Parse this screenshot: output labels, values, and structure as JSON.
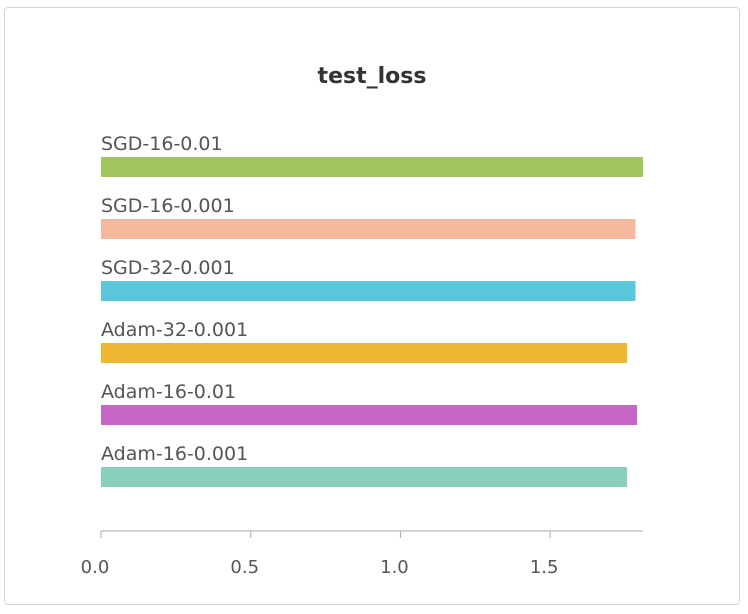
{
  "chart_data": {
    "type": "bar",
    "orientation": "horizontal",
    "title": "test_loss",
    "xlabel": "",
    "ylabel": "",
    "categories": [
      "SGD-16-0.01",
      "SGD-16-0.001",
      "SGD-32-0.001",
      "Adam-32-0.001",
      "Adam-16-0.01",
      "Adam-16-0.001"
    ],
    "values": [
      1.81,
      1.785,
      1.785,
      1.757,
      1.79,
      1.757
    ],
    "colors": [
      "#a3c55d",
      "#f4b89c",
      "#5bc5db",
      "#efb832",
      "#c566c5",
      "#8acfbe"
    ],
    "xlim": [
      0,
      1.81
    ],
    "xticks": [
      0,
      0.5,
      1.0,
      1.5
    ],
    "xtick_labels": [
      "0.0",
      "0.5",
      "1.0",
      "1.5"
    ],
    "grid": false,
    "legend": "none"
  }
}
